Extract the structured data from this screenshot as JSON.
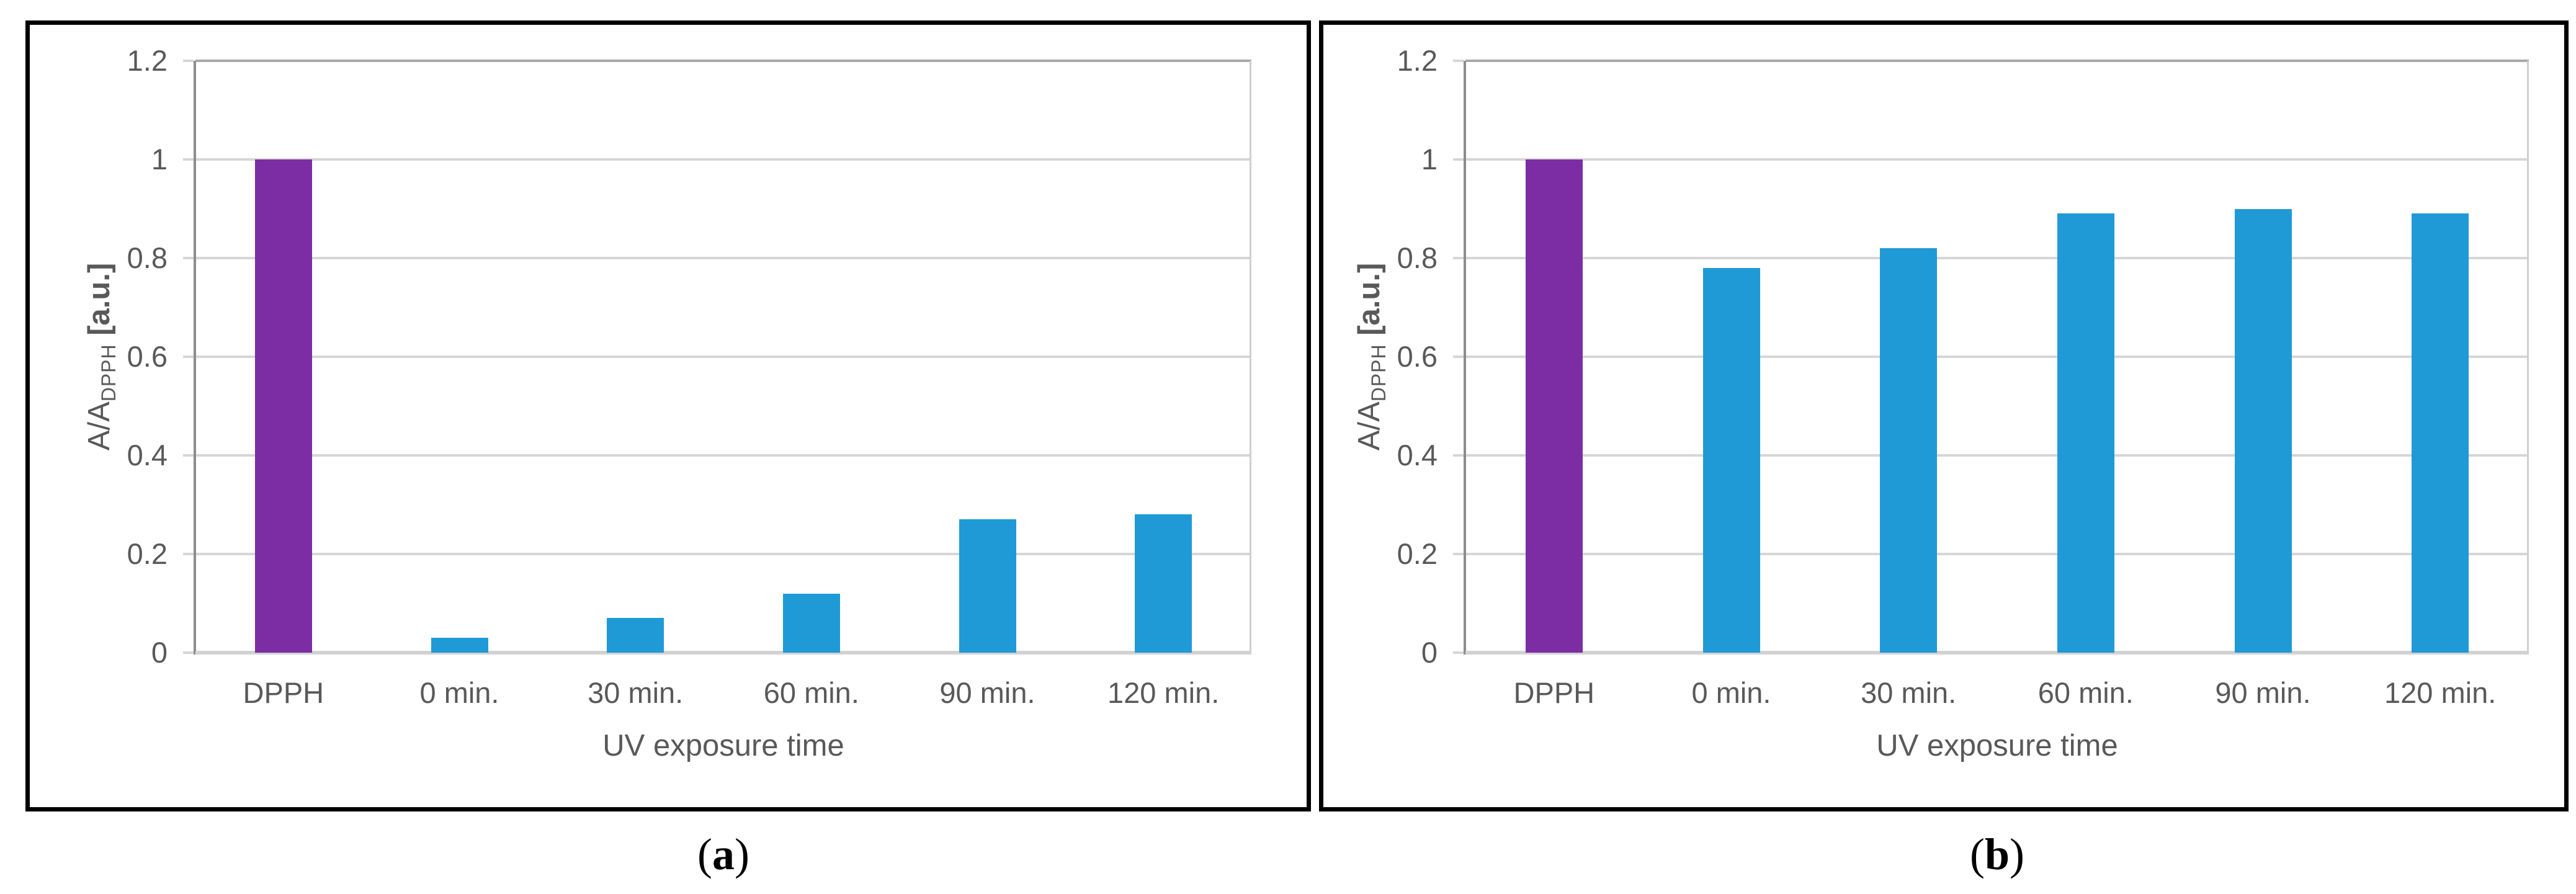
{
  "figure": {
    "captions": [
      {
        "open": "(",
        "letter": "a",
        "close": ")",
        "text": "(a)"
      },
      {
        "open": "(",
        "letter": "b",
        "close": ")",
        "text": "(b)"
      }
    ]
  },
  "colors": {
    "dpph_bar": "#7C2DA4",
    "sample_bar": "#1F9AD6",
    "gridline": "#D6D6D6",
    "top_gridline": "#A9A9A9",
    "baseline": "#D2D2D2",
    "y_axis_line": "#8C8C8C",
    "plot_right_border": "#CFCFCF",
    "axis_text": "#595959",
    "panel_border": "#000000",
    "background": "#FFFFFF"
  },
  "chart_data": [
    {
      "type": "bar",
      "panel": "a",
      "title": "",
      "categories": [
        "DPPH",
        "0 min.",
        "30 min.",
        "60 min.",
        "90 min.",
        "120 min."
      ],
      "values": [
        1.0,
        0.03,
        0.07,
        0.12,
        0.27,
        0.28
      ],
      "bar_colors": [
        "#7C2DA4",
        "#1F9AD6",
        "#1F9AD6",
        "#1F9AD6",
        "#1F9AD6",
        "#1F9AD6"
      ],
      "xlabel": "UV exposure time",
      "ylabel": "A/A_DPPH [a.u.]",
      "ylabel_parts": {
        "prefix": "A/A",
        "sub": "DPPH",
        "suffix": " [a.u.]"
      },
      "ylim": [
        0,
        1.2
      ],
      "yticks": [
        0,
        0.2,
        0.4,
        0.6,
        0.8,
        1.0,
        1.2
      ],
      "ytick_labels": [
        "0",
        "0.2",
        "0.4",
        "0.6",
        "0.8",
        "1",
        "1.2"
      ],
      "grid": true,
      "legend": null
    },
    {
      "type": "bar",
      "panel": "b",
      "title": "",
      "categories": [
        "DPPH",
        "0 min.",
        "30 min.",
        "60 min.",
        "90 min.",
        "120 min."
      ],
      "values": [
        1.0,
        0.78,
        0.82,
        0.89,
        0.9,
        0.89
      ],
      "bar_colors": [
        "#7C2DA4",
        "#1F9AD6",
        "#1F9AD6",
        "#1F9AD6",
        "#1F9AD6",
        "#1F9AD6"
      ],
      "xlabel": "UV exposure time",
      "ylabel": "A/A_DPPH [a.u.]",
      "ylabel_parts": {
        "prefix": "A/A",
        "sub": "DPPH",
        "suffix": " [a.u.]"
      },
      "ylim": [
        0,
        1.2
      ],
      "yticks": [
        0,
        0.2,
        0.4,
        0.6,
        0.8,
        1.0,
        1.2
      ],
      "ytick_labels": [
        "0",
        "0.2",
        "0.4",
        "0.6",
        "0.8",
        "1",
        "1.2"
      ],
      "grid": true,
      "legend": null
    }
  ]
}
